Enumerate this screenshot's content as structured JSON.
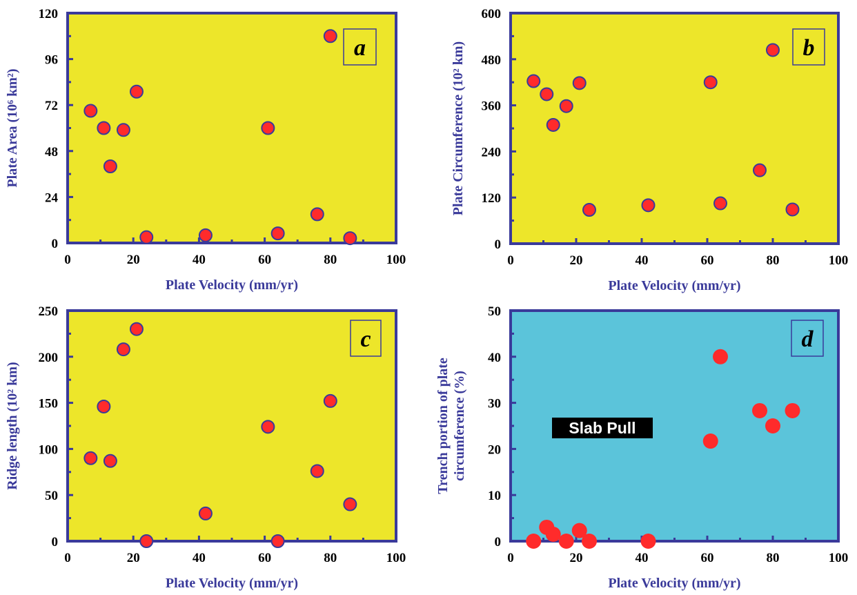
{
  "figure": {
    "axis_color": "#3a3a9a",
    "point_fill": "#ff2b2b",
    "point_stroke": "#3a3a9a"
  },
  "chart_data": [
    {
      "panel": "a",
      "type": "scatter",
      "xlabel": "Plate Velocity (mm/yr)",
      "ylabel": "Plate Area (10⁶ km²)",
      "xlim": [
        0,
        100
      ],
      "ylim": [
        0,
        120
      ],
      "xticks": [
        0,
        20,
        40,
        60,
        80,
        100
      ],
      "yticks": [
        0,
        24,
        48,
        72,
        96,
        120
      ],
      "background": "#ede62a",
      "grid": false,
      "points": [
        {
          "x": 7,
          "y": 69
        },
        {
          "x": 11,
          "y": 60
        },
        {
          "x": 13,
          "y": 40
        },
        {
          "x": 17,
          "y": 59
        },
        {
          "x": 21,
          "y": 79
        },
        {
          "x": 24,
          "y": 3
        },
        {
          "x": 42,
          "y": 4
        },
        {
          "x": 61,
          "y": 60
        },
        {
          "x": 64,
          "y": 5
        },
        {
          "x": 76,
          "y": 15
        },
        {
          "x": 80,
          "y": 108
        },
        {
          "x": 86,
          "y": 2.5
        }
      ]
    },
    {
      "panel": "b",
      "type": "scatter",
      "xlabel": "Plate Velocity (mm/yr)",
      "ylabel": "Plate Circumference (10² km)",
      "xlim": [
        0,
        100
      ],
      "ylim": [
        0,
        600
      ],
      "xticks": [
        0,
        20,
        40,
        60,
        80,
        100
      ],
      "yticks": [
        0,
        120,
        240,
        360,
        480,
        600
      ],
      "background": "#ede62a",
      "grid": false,
      "points": [
        {
          "x": 7,
          "y": 423
        },
        {
          "x": 11,
          "y": 389
        },
        {
          "x": 13,
          "y": 309
        },
        {
          "x": 17,
          "y": 358
        },
        {
          "x": 21,
          "y": 418
        },
        {
          "x": 24,
          "y": 88
        },
        {
          "x": 42,
          "y": 100
        },
        {
          "x": 61,
          "y": 420
        },
        {
          "x": 64,
          "y": 105
        },
        {
          "x": 76,
          "y": 191
        },
        {
          "x": 80,
          "y": 504
        },
        {
          "x": 86,
          "y": 89
        }
      ]
    },
    {
      "panel": "c",
      "type": "scatter",
      "xlabel": "Plate Velocity (mm/yr)",
      "ylabel": "Ridge length (10² km)",
      "xlim": [
        0,
        100
      ],
      "ylim": [
        0,
        250
      ],
      "xticks": [
        0,
        20,
        40,
        60,
        80,
        100
      ],
      "yticks": [
        0,
        50,
        100,
        150,
        200,
        250
      ],
      "background": "#ede62a",
      "grid": false,
      "points": [
        {
          "x": 7,
          "y": 90
        },
        {
          "x": 11,
          "y": 146
        },
        {
          "x": 13,
          "y": 87
        },
        {
          "x": 17,
          "y": 208
        },
        {
          "x": 21,
          "y": 230
        },
        {
          "x": 24,
          "y": 0
        },
        {
          "x": 42,
          "y": 30
        },
        {
          "x": 61,
          "y": 124
        },
        {
          "x": 64,
          "y": 0
        },
        {
          "x": 76,
          "y": 76
        },
        {
          "x": 80,
          "y": 152
        },
        {
          "x": 86,
          "y": 40
        }
      ]
    },
    {
      "panel": "d",
      "type": "scatter",
      "xlabel": "Plate Velocity (mm/yr)",
      "ylabel": "Trench portion of plate circumference (%)",
      "ylabel_lines": [
        "Trench portion of plate",
        "circumference (%)"
      ],
      "xlim": [
        0,
        100
      ],
      "ylim": [
        0,
        50
      ],
      "xticks": [
        0,
        20,
        40,
        60,
        80,
        100
      ],
      "yticks": [
        0,
        10,
        20,
        30,
        40,
        50
      ],
      "background": "#5bc4da",
      "grid": false,
      "annotation": "Slab Pull",
      "points": [
        {
          "x": 7,
          "y": 0
        },
        {
          "x": 11,
          "y": 3
        },
        {
          "x": 13,
          "y": 1.5
        },
        {
          "x": 17,
          "y": 0
        },
        {
          "x": 21,
          "y": 2.3
        },
        {
          "x": 24,
          "y": 0
        },
        {
          "x": 42,
          "y": 0
        },
        {
          "x": 61,
          "y": 21.7
        },
        {
          "x": 64,
          "y": 40
        },
        {
          "x": 76,
          "y": 28.3
        },
        {
          "x": 80,
          "y": 25
        },
        {
          "x": 86,
          "y": 28.3
        }
      ]
    }
  ]
}
